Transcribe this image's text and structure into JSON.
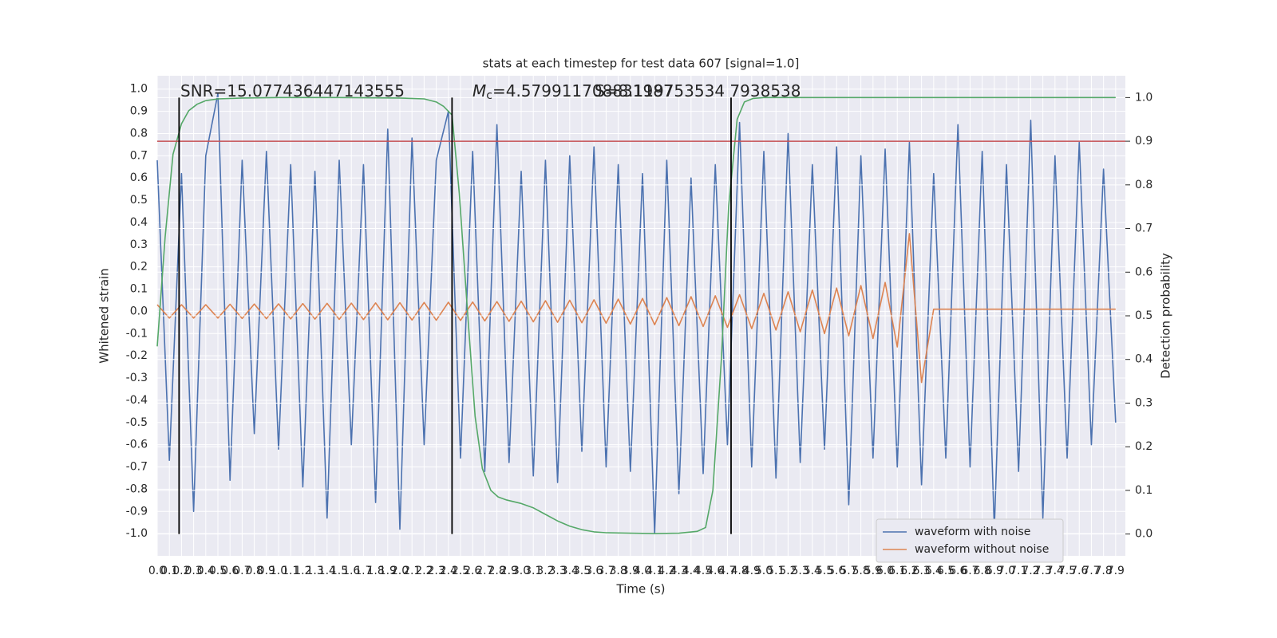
{
  "chart_data": {
    "type": "line",
    "title": "stats at each timestep for test data 607 [signal=1.0]",
    "xlabel": "Time (s)",
    "ylabel": "Whitened strain",
    "y2label": "Detection probability",
    "grid": true,
    "legend": "lower right",
    "xlim": [
      0,
      7.98
    ],
    "ylim": [
      -1.1,
      1.06
    ],
    "y2lim": [
      -0.05,
      1.05
    ],
    "xticks": [
      {
        "value": 0,
        "label": "0.0"
      },
      0.1,
      0.2,
      0.3,
      0.4,
      0.5,
      0.6,
      0.7,
      0.8,
      0.9,
      {
        "value": 1,
        "label": "1.0"
      },
      1.1,
      1.2,
      1.3,
      1.4,
      1.5,
      1.6,
      1.7,
      1.8,
      1.9,
      {
        "value": 2,
        "label": "2.0"
      },
      2.1,
      2.2,
      2.3,
      2.4,
      2.5,
      2.6,
      2.7,
      2.8,
      2.9,
      {
        "value": 3,
        "label": "3.0"
      },
      3.1,
      3.2,
      3.3,
      3.4,
      3.5,
      3.6,
      3.7,
      3.8,
      3.9,
      {
        "value": 4,
        "label": "4.0"
      },
      4.1,
      4.2,
      4.3,
      4.4,
      4.5,
      4.6,
      4.7,
      4.8,
      4.9,
      {
        "value": 5,
        "label": "5.0"
      },
      5.1,
      5.2,
      5.3,
      5.4,
      5.5,
      5.6,
      5.7,
      5.8,
      5.9,
      {
        "value": 6,
        "label": "6.0"
      },
      6.1,
      6.2,
      6.3,
      6.4,
      6.5,
      6.6,
      6.7,
      6.8,
      6.9,
      {
        "value": 7,
        "label": "7.0"
      },
      7.1,
      7.2,
      7.3,
      7.4,
      7.5,
      7.6,
      7.7,
      7.8,
      7.9
    ],
    "yticks": [
      {
        "value": -1,
        "label": "-1.0"
      },
      -0.9,
      -0.8,
      -0.7,
      -0.6,
      -0.5,
      -0.4,
      -0.3,
      -0.2,
      -0.1,
      {
        "value": 0,
        "label": "0.0"
      },
      0.1,
      0.2,
      0.3,
      0.4,
      0.5,
      0.6,
      0.7,
      0.8,
      0.9,
      {
        "value": 1,
        "label": "1.0"
      }
    ],
    "y2ticks": [
      {
        "value": 0,
        "label": "0.0"
      },
      0.1,
      0.2,
      0.3,
      0.4,
      0.5,
      0.6,
      0.7,
      0.8,
      0.9,
      {
        "value": 1,
        "label": "1.0"
      }
    ],
    "x": [
      0,
      0.1,
      0.2,
      0.3,
      0.4,
      0.5,
      0.6,
      0.7,
      0.8,
      0.9,
      1,
      1.1,
      1.2,
      1.3,
      1.4,
      1.5,
      1.6,
      1.7,
      1.8,
      1.9,
      2,
      2.1,
      2.2,
      2.3,
      2.4,
      2.5,
      2.6,
      2.7,
      2.8,
      2.9,
      3,
      3.1,
      3.2,
      3.3,
      3.4,
      3.5,
      3.6,
      3.7,
      3.8,
      3.9,
      4,
      4.1,
      4.2,
      4.3,
      4.4,
      4.5,
      4.6,
      4.7,
      4.8,
      4.9,
      5,
      5.1,
      5.2,
      5.3,
      5.4,
      5.5,
      5.6,
      5.7,
      5.8,
      5.9,
      6,
      6.1,
      6.2,
      6.3,
      6.4,
      6.5,
      6.6,
      6.7,
      6.8,
      6.9,
      7,
      7.1,
      7.2,
      7.3,
      7.4,
      7.5,
      7.6,
      7.7,
      7.8,
      7.9
    ],
    "series": [
      {
        "name": "waveform with noise",
        "color": "#4c72b0",
        "values": [
          0.68,
          -0.67,
          0.62,
          -0.9,
          0.7,
          0.98,
          -0.76,
          0.68,
          -0.55,
          0.72,
          -0.62,
          0.66,
          -0.79,
          0.63,
          -0.93,
          0.68,
          -0.6,
          0.66,
          -0.86,
          0.82,
          -0.98,
          0.78,
          -0.6,
          0.68,
          0.9,
          -0.66,
          0.72,
          -0.72,
          0.84,
          -0.68,
          0.63,
          -0.74,
          0.68,
          -0.77,
          0.7,
          -0.63,
          0.74,
          -0.7,
          0.66,
          -0.72,
          0.62,
          -1.0,
          0.68,
          -0.82,
          0.6,
          -0.73,
          0.66,
          -0.6,
          0.85,
          -0.7,
          0.72,
          -0.75,
          0.8,
          -0.68,
          0.66,
          -0.62,
          0.74,
          -0.87,
          0.7,
          -0.66,
          0.73,
          -0.7,
          0.76,
          -0.78,
          0.62,
          -0.66,
          0.84,
          -0.7,
          0.72,
          -0.98,
          0.66,
          -0.72,
          0.86,
          -0.93,
          0.7,
          -0.66,
          0.76,
          -0.6,
          0.64,
          -0.5
        ]
      },
      {
        "name": "waveform without noise",
        "color": "#dd8452",
        "values": [
          0.03,
          -0.03,
          0.03,
          -0.03,
          0.03,
          -0.03,
          0.032,
          -0.032,
          0.033,
          -0.033,
          0.034,
          -0.034,
          0.035,
          -0.035,
          0.036,
          -0.036,
          0.037,
          -0.037,
          0.038,
          -0.038,
          0.039,
          -0.039,
          0.04,
          -0.04,
          0.041,
          -0.041,
          0.042,
          -0.043,
          0.044,
          -0.045,
          0.046,
          -0.047,
          0.048,
          -0.049,
          0.05,
          -0.051,
          0.052,
          -0.053,
          0.055,
          -0.057,
          0.058,
          -0.06,
          0.062,
          -0.064,
          0.066,
          -0.068,
          0.07,
          -0.072,
          0.075,
          -0.078,
          0.081,
          -0.084,
          0.088,
          -0.092,
          0.096,
          -0.1,
          0.105,
          -0.11,
          0.116,
          -0.122,
          0.13,
          -0.16,
          0.35,
          -0.32,
          0.01,
          0.01,
          0.01,
          0.01,
          0.01,
          0.01,
          0.01,
          0.01,
          0.01,
          0.01,
          0.01,
          0.01,
          0.01,
          0.01,
          0.01,
          0.01
        ]
      },
      {
        "color": "#55a868",
        "axis": "y2",
        "x": [
          0,
          0.065,
          0.13,
          0.2,
          0.26,
          0.33,
          0.4,
          0.5,
          0.7,
          1.0,
          1.5,
          2.0,
          2.2,
          2.3,
          2.36,
          2.43,
          2.49,
          2.56,
          2.62,
          2.68,
          2.75,
          2.81,
          2.88,
          3.0,
          3.1,
          3.2,
          3.3,
          3.4,
          3.5,
          3.6,
          3.7,
          3.9,
          4.1,
          4.3,
          4.45,
          4.52,
          4.58,
          4.65,
          4.71,
          4.78,
          4.84,
          4.91,
          5.0,
          6.0,
          7.0,
          7.9
        ],
        "values": [
          0.43,
          0.68,
          0.87,
          0.94,
          0.97,
          0.985,
          0.993,
          0.997,
          0.999,
          1.0,
          1.0,
          0.999,
          0.997,
          0.99,
          0.98,
          0.96,
          0.78,
          0.5,
          0.27,
          0.15,
          0.1,
          0.085,
          0.078,
          0.07,
          0.06,
          0.045,
          0.03,
          0.018,
          0.01,
          0.005,
          0.003,
          0.002,
          0.001,
          0.002,
          0.006,
          0.015,
          0.1,
          0.4,
          0.75,
          0.95,
          0.99,
          0.998,
          1.0,
          1.0,
          1.0,
          1.0
        ]
      }
    ],
    "hlines": [
      {
        "value": 0.9,
        "axis": "y2",
        "color": "#c44e52"
      }
    ],
    "vlines": {
      "x": [
        0.18,
        2.43,
        4.73
      ],
      "color": "#000000"
    },
    "annotations": [
      {
        "text": "SNR=15.077436447143555"
      },
      {
        "symbol": "M",
        "subscript": "c",
        "text": "=4.579911708831987"
      },
      {
        "text": "S=8.119753534 7938538"
      }
    ]
  }
}
